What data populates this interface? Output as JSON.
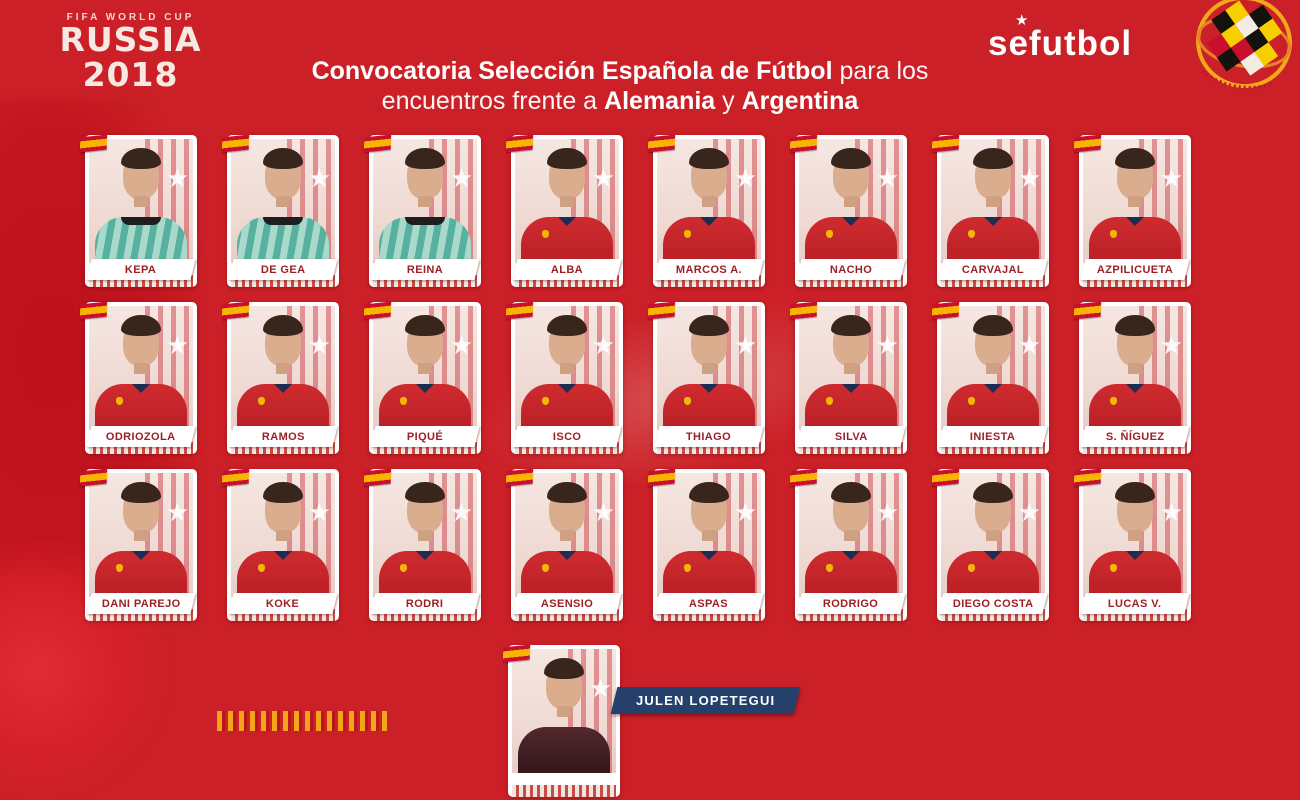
{
  "header": {
    "fifa_line": "FIFA WORLD CUP",
    "russia_line": "RUSSIA 2018",
    "brand": "sefutbol",
    "brand_star": "★",
    "crest": "rfef-crest"
  },
  "title": {
    "line1_bold": "Convocatoria Selección Española de Fútbol",
    "line1_rest": " para los",
    "line2_pre": "encuentros frente a ",
    "line2_bold1": "Alemania",
    "line2_mid": " y ",
    "line2_bold2": "Argentina"
  },
  "grid": {
    "rows": [
      [
        "KEPA",
        "DE GEA",
        "REINA",
        "ALBA",
        "MARCOS A.",
        "NACHO",
        "CARVAJAL",
        "AZPILICUETA"
      ],
      [
        "ODRIOZOLA",
        "RAMOS",
        "PIQUÉ",
        "ISCO",
        "THIAGO",
        "SILVA",
        "INIESTA",
        "S. ÑÍGUEZ"
      ],
      [
        "DANI PAREJO",
        "KOKE",
        "RODRI",
        "ASENSIO",
        "ASPAS",
        "RODRIGO",
        "DIEGO COSTA",
        "LUCAS V."
      ]
    ],
    "goalkeeper_count_row1": 3,
    "coach": "JULEN LOPETEGUI"
  },
  "decor": {
    "photo_star": "★"
  },
  "colors": {
    "background_red": "#cb2027",
    "plate_text_red": "#9c1f26",
    "coach_bar_navy": "#24406b",
    "flag_red": "#c8102e",
    "flag_yellow": "#f7b500",
    "gk_jersey_teal": "#57b19e",
    "field_jersey_red": "#cf2b2f",
    "fringe_yellow": "#f1a517"
  }
}
